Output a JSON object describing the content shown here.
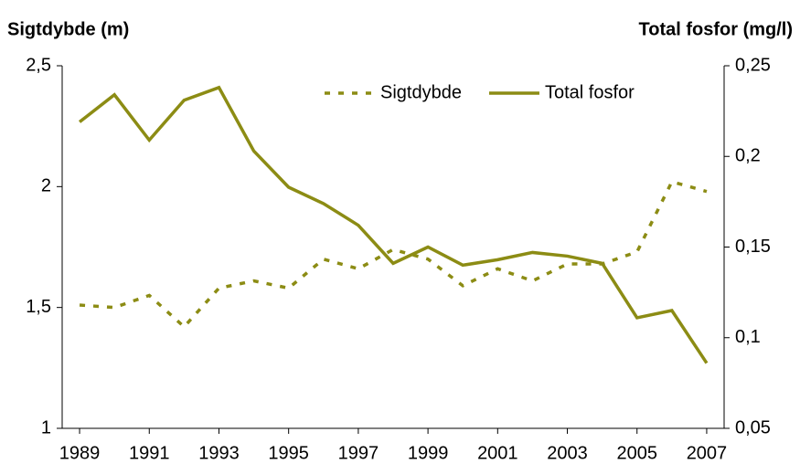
{
  "chart_data": {
    "type": "line",
    "y_label": "Sigtdybde (m)",
    "y2_label": "Total fosfor (mg/l)",
    "x": [
      1989,
      1990,
      1991,
      1992,
      1993,
      1994,
      1995,
      1996,
      1997,
      1998,
      1999,
      2000,
      2001,
      2002,
      2003,
      2004,
      2005,
      2006,
      2007
    ],
    "xlim": [
      1988.5,
      2007.5
    ],
    "xticks": [
      1989,
      1991,
      1993,
      1995,
      1997,
      1999,
      2001,
      2003,
      2005,
      2007
    ],
    "ylim": [
      1,
      2.5
    ],
    "yticks": [
      1,
      {
        "value": 1.5,
        "label": "1,5"
      },
      2,
      {
        "value": 2.5,
        "label": "2,5"
      }
    ],
    "y2lim": [
      0.05,
      0.25
    ],
    "y2ticks": [
      {
        "value": 0.05,
        "label": "0,05"
      },
      {
        "value": 0.1,
        "label": "0,1"
      },
      {
        "value": 0.15,
        "label": "0,15"
      },
      {
        "value": 0.2,
        "label": "0,2"
      },
      {
        "value": 0.25,
        "label": "0,25"
      }
    ],
    "legend": "top-right",
    "series": [
      {
        "name": "Sigtdybde",
        "color": "#8c8c14",
        "line_style": "dotted",
        "values": [
          1.51,
          1.5,
          1.55,
          1.42,
          1.58,
          1.61,
          1.58,
          1.7,
          1.66,
          1.74,
          1.7,
          1.59,
          1.66,
          1.61,
          1.68,
          1.68,
          1.73,
          2.02,
          1.98
        ]
      },
      {
        "name": "Total fosfor",
        "color": "#8c8c14",
        "line_style": "solid",
        "axis": "y2",
        "values": [
          0.219,
          0.234,
          0.209,
          0.231,
          0.238,
          0.203,
          0.183,
          0.174,
          0.162,
          0.141,
          0.15,
          0.14,
          0.143,
          0.147,
          0.145,
          0.141,
          0.111,
          0.115,
          0.086
        ]
      }
    ]
  }
}
